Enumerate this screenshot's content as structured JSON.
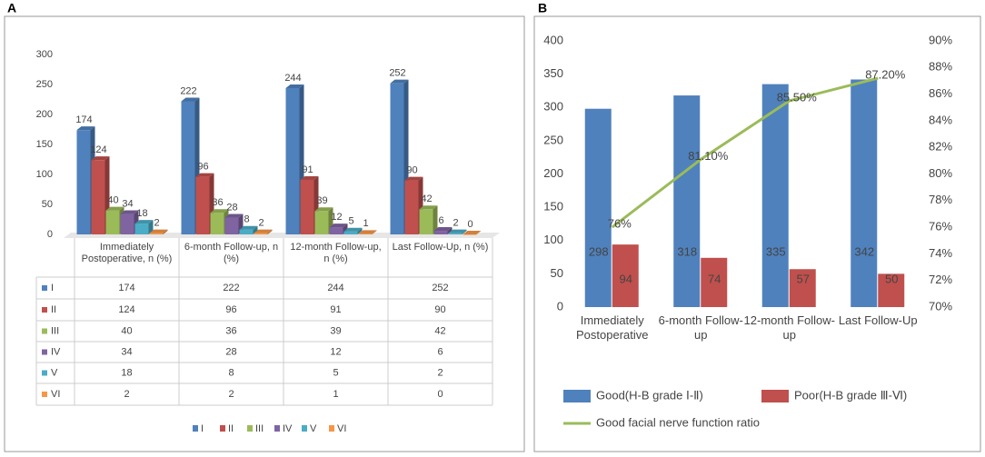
{
  "chart_data": [
    {
      "type": "bar3d",
      "panel_label": "A",
      "categories": [
        "Immediately Postoperative, n (%)",
        "6-month Follow-up, n (%)",
        "12-month Follow-up, n (%)",
        "Last Follow-Up, n (%)"
      ],
      "series": [
        {
          "name": "I",
          "color": "#4f81bd",
          "values": [
            174,
            222,
            244,
            252
          ]
        },
        {
          "name": "II",
          "color": "#c0504d",
          "values": [
            124,
            96,
            91,
            90
          ]
        },
        {
          "name": "III",
          "color": "#9bbb59",
          "values": [
            40,
            36,
            39,
            42
          ]
        },
        {
          "name": "IV",
          "color": "#8064a2",
          "values": [
            34,
            28,
            12,
            6
          ]
        },
        {
          "name": "V",
          "color": "#4bacc6",
          "values": [
            18,
            8,
            5,
            2
          ]
        },
        {
          "name": "VI",
          "color": "#f79646",
          "values": [
            2,
            2,
            1,
            0
          ]
        }
      ],
      "ylim": [
        0,
        300
      ],
      "yticks": [
        0,
        50,
        100,
        150,
        200,
        250,
        300
      ],
      "grid": false,
      "legend": "bottom"
    },
    {
      "type": "bar_line",
      "panel_label": "B",
      "categories": [
        "Immediately Postoperative",
        "6-month Follow-up",
        "12-month Follow-up",
        "Last Follow-Up"
      ],
      "series": [
        {
          "name": "Good(H-B grade Ⅰ-Ⅱ)",
          "type": "bar",
          "color": "#4f81bd",
          "values": [
            298,
            318,
            335,
            342
          ]
        },
        {
          "name": "Poor(H-B grade Ⅲ-Ⅵ)",
          "type": "bar",
          "color": "#c0504d",
          "values": [
            94,
            74,
            57,
            50
          ]
        },
        {
          "name": "Good facial nerve function ratio",
          "type": "line",
          "axis": "y2",
          "color": "#9bbb59",
          "values": [
            76,
            81.1,
            85.5,
            87.2
          ],
          "value_labels": [
            "76%",
            "81.10%",
            "85.50%",
            "87.20%"
          ]
        }
      ],
      "ylim": [
        0,
        400
      ],
      "yticks": [
        0,
        50,
        100,
        150,
        200,
        250,
        300,
        350,
        400
      ],
      "y2lim": [
        70,
        90
      ],
      "y2ticks": [
        {
          "value": 70,
          "label": "70%"
        },
        {
          "value": 72,
          "label": "72%"
        },
        {
          "value": 74,
          "label": "74%"
        },
        {
          "value": 76,
          "label": "76%"
        },
        {
          "value": 78,
          "label": "78%"
        },
        {
          "value": 80,
          "label": "80%"
        },
        {
          "value": 82,
          "label": "82%"
        },
        {
          "value": 84,
          "label": "84%"
        },
        {
          "value": 86,
          "label": "86%"
        },
        {
          "value": 88,
          "label": "88%"
        },
        {
          "value": 90,
          "label": "90%"
        }
      ],
      "grid": false,
      "legend": "bottom"
    }
  ]
}
